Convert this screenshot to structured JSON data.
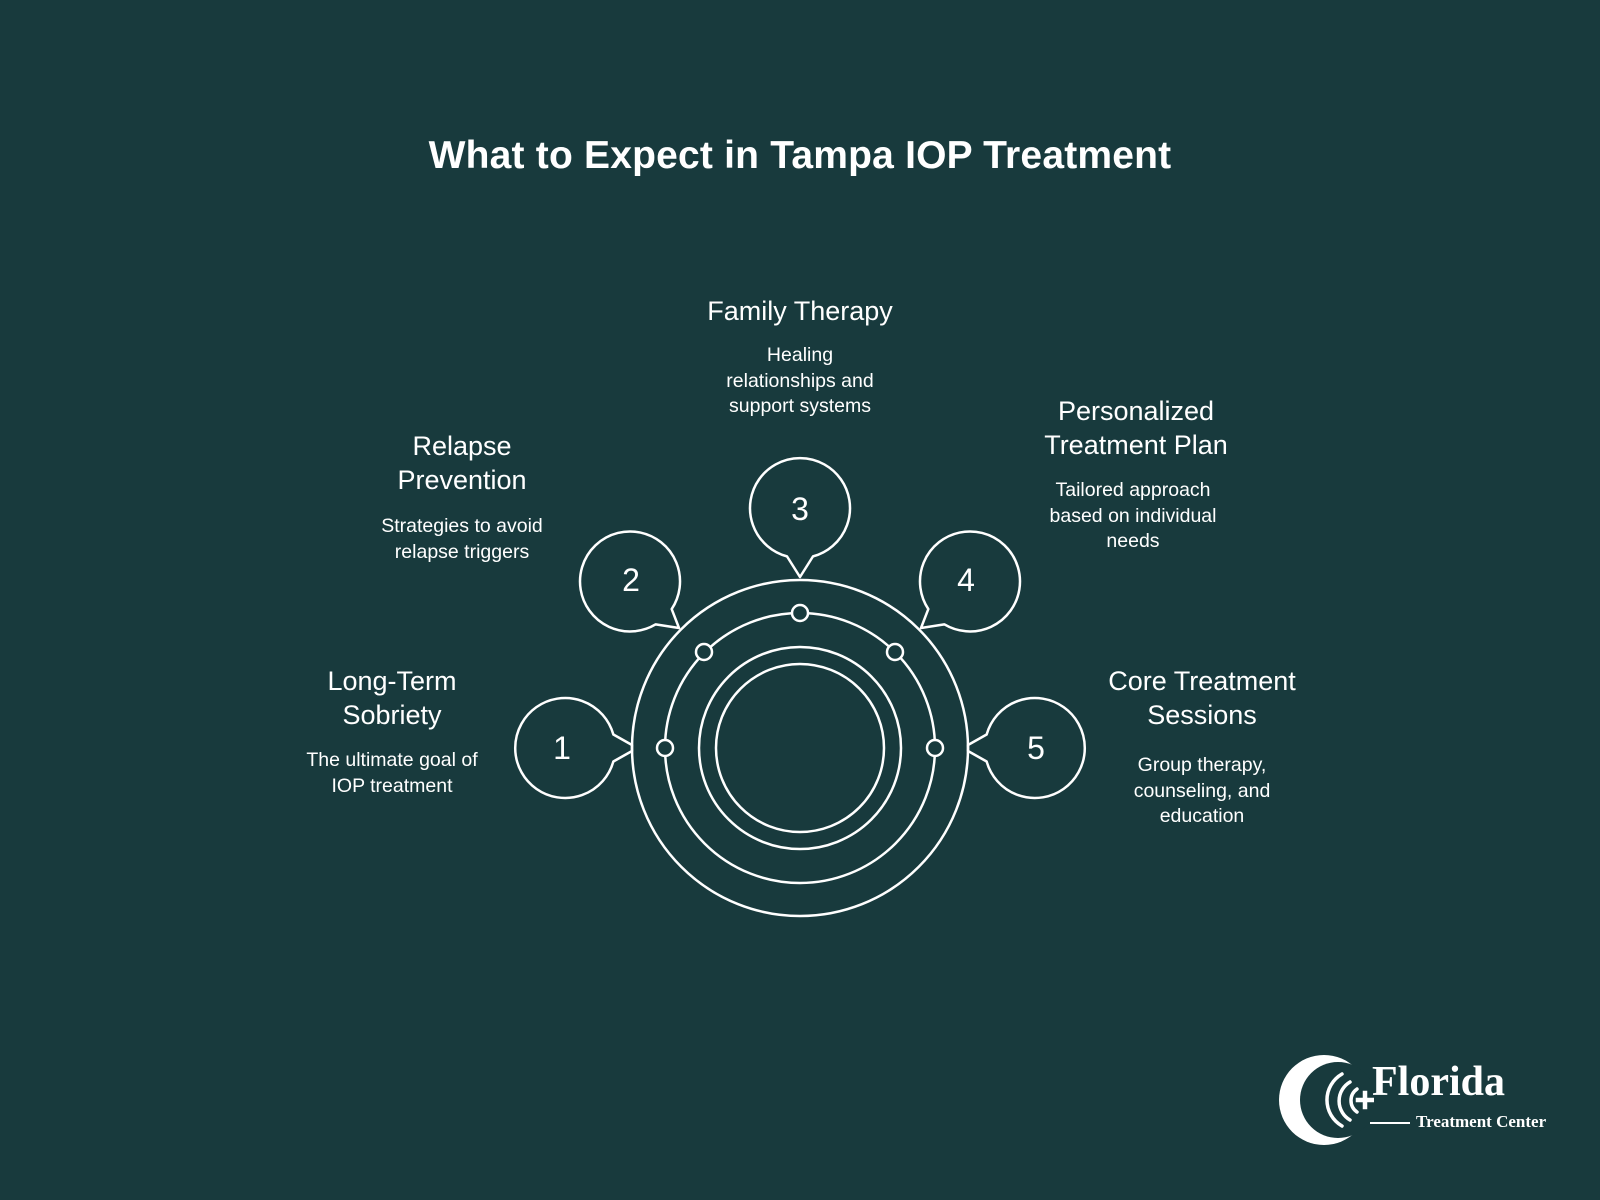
{
  "title": "What to Expect in Tampa IOP Treatment",
  "colors": {
    "background": "#183a3d",
    "foreground": "#ffffff"
  },
  "steps": [
    {
      "number": "1",
      "heading": [
        "Long-Term",
        "Sobriety"
      ],
      "description": [
        "The ultimate goal of",
        "IOP treatment"
      ]
    },
    {
      "number": "2",
      "heading": [
        "Relapse",
        "Prevention"
      ],
      "description": [
        "Strategies to avoid",
        "relapse triggers"
      ]
    },
    {
      "number": "3",
      "heading": [
        "Family Therapy"
      ],
      "description": [
        "Healing",
        "relationships and",
        "support systems"
      ]
    },
    {
      "number": "4",
      "heading": [
        "Personalized",
        "Treatment Plan"
      ],
      "description": [
        "Tailored approach",
        "based on individual",
        "needs"
      ]
    },
    {
      "number": "5",
      "heading": [
        "Core Treatment",
        "Sessions"
      ],
      "description": [
        "Group therapy,",
        "counseling, and",
        "education"
      ]
    }
  ],
  "logo": {
    "name": "Florida",
    "subtitle": "Treatment Center",
    "icon": "crescent-cross-icon"
  }
}
